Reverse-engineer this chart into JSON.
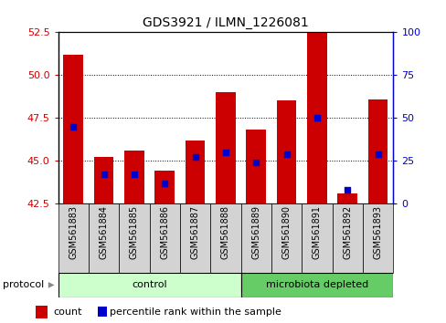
{
  "title": "GDS3921 / ILMN_1226081",
  "samples": [
    "GSM561883",
    "GSM561884",
    "GSM561885",
    "GSM561886",
    "GSM561887",
    "GSM561888",
    "GSM561889",
    "GSM561890",
    "GSM561891",
    "GSM561892",
    "GSM561893"
  ],
  "counts": [
    51.2,
    45.2,
    45.6,
    44.4,
    46.2,
    49.0,
    46.8,
    48.5,
    52.5,
    43.1,
    48.6
  ],
  "percentile_ranks_pct": [
    45.0,
    17.0,
    17.0,
    12.0,
    27.0,
    30.0,
    24.0,
    29.0,
    50.0,
    8.0,
    29.0
  ],
  "ylim_left": [
    42.5,
    52.5
  ],
  "ylim_right": [
    0,
    100
  ],
  "yticks_left": [
    42.5,
    45.0,
    47.5,
    50.0,
    52.5
  ],
  "yticks_right": [
    0,
    25,
    50,
    75,
    100
  ],
  "bar_color": "#cc0000",
  "dot_color": "#0000cc",
  "control_color": "#ccffcc",
  "microbiota_color": "#66cc66",
  "xticklabel_bg": "#d0d0d0",
  "control_label": "control",
  "microbiota_label": "microbiota depleted",
  "protocol_label": "protocol",
  "legend_count": "count",
  "legend_percentile": "percentile rank within the sample",
  "n_control": 6,
  "n_microbiota": 5,
  "bar_bottom": 42.5,
  "dot_size": 18
}
